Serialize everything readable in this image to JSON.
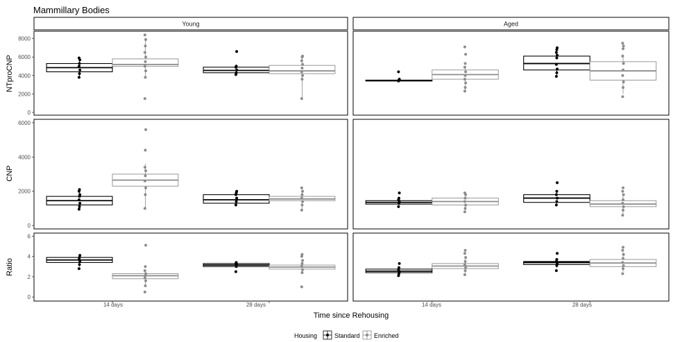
{
  "chart_data": {
    "type": "box",
    "title": "Mammillary Bodies",
    "xlabel": "Time since Rehousing",
    "facet_columns": [
      "Young",
      "Aged"
    ],
    "categories": [
      "14 days",
      "28 days"
    ],
    "legend": {
      "title": "Housing",
      "position": "bottom",
      "entries": [
        {
          "name": "Standard",
          "color": "#000000"
        },
        {
          "name": "Enriched",
          "color": "#8c8c8c"
        }
      ]
    },
    "panels": [
      {
        "ylabel": "NTproCNP",
        "ylim": [
          -300,
          8800
        ],
        "yticks": [
          0,
          2000,
          4000,
          6000,
          8000
        ],
        "yticklabels": [
          "0",
          "2000",
          "4000",
          "6000",
          "8000"
        ],
        "groups": {
          "Young": [
            {
              "category": "14 days",
              "Standard": {
                "box": [
                  4400,
                  4850,
                  5300
                ],
                "whiskers": [
                  3700,
                  5900
                ],
                "points": [
                  3800,
                  4200,
                  4600,
                  5000,
                  5300,
                  5700,
                  5900
                ]
              },
              "Enriched": {
                "box": [
                  5000,
                  5200,
                  5800
                ],
                "whiskers": [
                  3800,
                  8000
                ],
                "points": [
                  1500,
                  3800,
                  4500,
                  5000,
                  5500,
                  6000,
                  6500,
                  7200,
                  7900,
                  8400
                ]
              }
            },
            {
              "category": "28 days",
              "Standard": {
                "box": [
                  4300,
                  4550,
                  4900
                ],
                "whiskers": [
                  4100,
                  5200
                ],
                "points": [
                  4100,
                  4300,
                  4600,
                  4900,
                  5000,
                  6600
                ]
              },
              "Enriched": {
                "box": [
                  4200,
                  4500,
                  5100
                ],
                "whiskers": [
                  1500,
                  6100
                ],
                "points": [
                  1500,
                  3600,
                  4000,
                  4400,
                  4800,
                  5200,
                  5600,
                  6000,
                  6100
                ]
              }
            }
          ],
          "Aged": [
            {
              "category": "14 days",
              "Standard": {
                "box": [
                  3400,
                  3450,
                  3500
                ],
                "whiskers": [
                  3300,
                  3500
                ],
                "points": [
                  3400,
                  3500,
                  3600,
                  4400
                ]
              },
              "Enriched": {
                "box": [
                  3600,
                  4100,
                  4600
                ],
                "whiskers": [
                  2400,
                  5000
                ],
                "points": [
                  2300,
                  2700,
                  3200,
                  3600,
                  4000,
                  4400,
                  4900,
                  5300,
                  6300,
                  7100
                ]
              }
            },
            {
              "category": "28 days",
              "Standard": {
                "box": [
                  4600,
                  5300,
                  6100
                ],
                "whiskers": [
                  4000,
                  7000
                ],
                "points": [
                  3900,
                  4300,
                  4700,
                  5200,
                  5900,
                  6200,
                  6500,
                  6800,
                  7000
                ]
              },
              "Enriched": {
                "box": [
                  3500,
                  4500,
                  5500
                ],
                "whiskers": [
                  2000,
                  6300
                ],
                "points": [
                  1700,
                  2700,
                  3300,
                  4000,
                  4600,
                  5300,
                  6100,
                  6900,
                  7200,
                  7500
                ]
              }
            }
          ]
        }
      },
      {
        "ylabel": "CNP",
        "ylim": [
          -200,
          6200
        ],
        "yticks": [
          0,
          2000,
          4000,
          6000
        ],
        "yticklabels": [
          "0",
          "2000",
          "4000",
          "6000"
        ],
        "groups": {
          "Young": [
            {
              "category": "14 days",
              "Standard": {
                "box": [
                  1200,
                  1450,
                  1700
                ],
                "whiskers": [
                  1000,
                  2100
                ],
                "points": [
                  950,
                  1100,
                  1300,
                  1500,
                  1700,
                  1800,
                  2000,
                  2100
                ]
              },
              "Enriched": {
                "box": [
                  2300,
                  2650,
                  3000
                ],
                "whiskers": [
                  1000,
                  3600
                ],
                "points": [
                  1000,
                  1800,
                  2200,
                  2600,
                  2900,
                  3200,
                  3400,
                  4400,
                  5600
                ]
              }
            },
            {
              "category": "28 days",
              "Standard": {
                "box": [
                  1300,
                  1500,
                  1800
                ],
                "whiskers": [
                  1200,
                  2000
                ],
                "points": [
                  1200,
                  1400,
                  1600,
                  1800,
                  1900,
                  2000
                ]
              },
              "Enriched": {
                "box": [
                  1450,
                  1550,
                  1700
                ],
                "whiskers": [
                  900,
                  2200
                ],
                "points": [
                  900,
                  1200,
                  1400,
                  1600,
                  1800,
                  2000,
                  2200
                ]
              }
            }
          ],
          "Aged": [
            {
              "category": "14 days",
              "Standard": {
                "box": [
                  1250,
                  1350,
                  1450
                ],
                "whiskers": [
                  1100,
                  1600
                ],
                "points": [
                  1100,
                  1300,
                  1400,
                  1500,
                  1600,
                  1900
                ]
              },
              "Enriched": {
                "box": [
                  1200,
                  1400,
                  1600
                ],
                "whiskers": [
                  800,
                  1900
                ],
                "points": [
                  800,
                  1000,
                  1200,
                  1400,
                  1600,
                  1800,
                  1900
                ]
              }
            },
            {
              "category": "28 days",
              "Standard": {
                "box": [
                  1350,
                  1600,
                  1800
                ],
                "whiskers": [
                  1200,
                  2000
                ],
                "points": [
                  1200,
                  1400,
                  1600,
                  1800,
                  2000,
                  2500
                ]
              },
              "Enriched": {
                "box": [
                  1100,
                  1250,
                  1450
                ],
                "whiskers": [
                  600,
                  1800
                ],
                "points": [
                  600,
                  900,
                  1100,
                  1300,
                  1500,
                  1800,
                  2000,
                  2200
                ]
              }
            }
          ]
        }
      },
      {
        "ylabel": "Ratio",
        "ylim": [
          -0.4,
          6.3
        ],
        "yticks": [
          0,
          2,
          4,
          6
        ],
        "yticklabels": [
          "0",
          "2",
          "4",
          "6"
        ],
        "groups": {
          "Young": [
            {
              "category": "14 days",
              "Standard": {
                "box": [
                  3.4,
                  3.65,
                  3.9
                ],
                "whiskers": [
                  3.0,
                  4.2
                ],
                "points": [
                  2.8,
                  3.2,
                  3.5,
                  3.7,
                  3.9,
                  4.1
                ]
              },
              "Enriched": {
                "box": [
                  1.8,
                  2.1,
                  2.3
                ],
                "whiskers": [
                  1.0,
                  2.7
                ],
                "points": [
                  0.5,
                  1.1,
                  1.6,
                  1.9,
                  2.1,
                  2.3,
                  2.6,
                  3.0,
                  5.1
                ]
              }
            },
            {
              "category": "28 days",
              "Standard": {
                "box": [
                  3.0,
                  3.15,
                  3.3
                ],
                "whiskers": [
                  2.9,
                  3.4
                ],
                "points": [
                  2.5,
                  3.0,
                  3.2,
                  3.3,
                  3.4
                ]
              },
              "Enriched": {
                "box": [
                  2.75,
                  2.95,
                  3.15
                ],
                "whiskers": [
                  2.3,
                  3.5
                ],
                "points": [
                  1.0,
                  2.4,
                  2.7,
                  3.0,
                  3.3,
                  3.6,
                  4.0,
                  4.2
                ]
              }
            }
          ],
          "Aged": [
            {
              "category": "14 days",
              "Standard": {
                "box": [
                  2.4,
                  2.55,
                  2.75
                ],
                "whiskers": [
                  2.2,
                  3.0
                ],
                "points": [
                  2.1,
                  2.3,
                  2.5,
                  2.7,
                  2.9,
                  3.3
                ]
              },
              "Enriched": {
                "box": [
                  2.8,
                  3.05,
                  3.3
                ],
                "whiskers": [
                  2.3,
                  3.9
                ],
                "points": [
                  2.2,
                  2.6,
                  2.9,
                  3.2,
                  3.5,
                  3.9,
                  4.3,
                  4.6
                ]
              }
            },
            {
              "category": "28 days",
              "Standard": {
                "box": [
                  3.2,
                  3.4,
                  3.5
                ],
                "whiskers": [
                  2.9,
                  3.8
                ],
                "points": [
                  2.6,
                  3.1,
                  3.3,
                  3.5,
                  3.7,
                  4.3
                ]
              },
              "Enriched": {
                "box": [
                  3.0,
                  3.35,
                  3.7
                ],
                "whiskers": [
                  2.5,
                  4.4
                ],
                "points": [
                  2.3,
                  2.8,
                  3.1,
                  3.4,
                  3.8,
                  4.2,
                  4.6,
                  4.9
                ]
              }
            }
          ]
        }
      }
    ]
  }
}
